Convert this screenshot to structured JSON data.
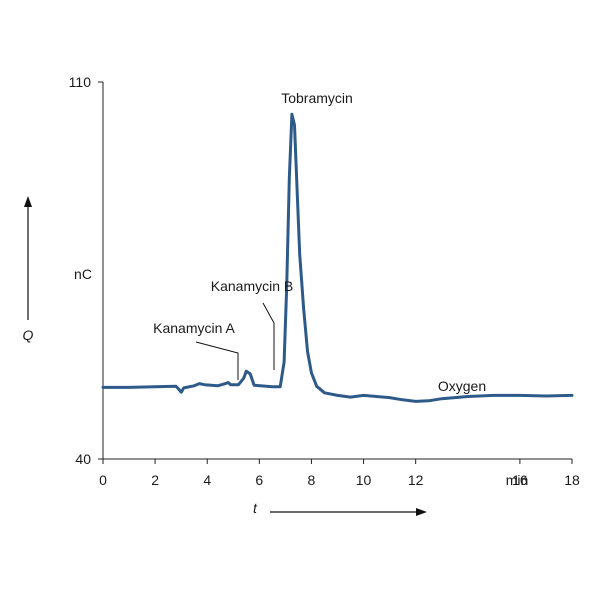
{
  "chart_data": {
    "type": "line",
    "title": "",
    "xlabel": "t",
    "ylabel": "Q",
    "yunit": "nC",
    "xunit": "min",
    "xlim": [
      0,
      18
    ],
    "ylim": [
      40,
      110
    ],
    "x_ticks": [
      {
        "value": 0,
        "label": "0"
      },
      {
        "value": 2,
        "label": "2"
      },
      {
        "value": 4,
        "label": "4"
      },
      {
        "value": 6,
        "label": "6"
      },
      {
        "value": 8,
        "label": "8"
      },
      {
        "value": 10,
        "label": "10"
      },
      {
        "value": 12,
        "label": "12"
      },
      {
        "value": 16,
        "label": "16"
      },
      {
        "value": 18,
        "label": "18"
      }
    ],
    "y_ticks": [
      {
        "value": 40,
        "label": "40"
      },
      {
        "value": 110,
        "label": "110"
      }
    ],
    "grid": false,
    "line_color": "#2e5a8a",
    "series": [
      {
        "values": [
          [
            0.0,
            53.3
          ],
          [
            1.0,
            53.3
          ],
          [
            2.0,
            53.4
          ],
          [
            2.8,
            53.5
          ],
          [
            2.9,
            53.0
          ],
          [
            3.0,
            52.4
          ],
          [
            3.1,
            53.2
          ],
          [
            3.5,
            53.6
          ],
          [
            3.7,
            54.0
          ],
          [
            3.9,
            53.8
          ],
          [
            4.4,
            53.6
          ],
          [
            4.7,
            54.0
          ],
          [
            4.8,
            54.2
          ],
          [
            4.9,
            53.8
          ],
          [
            5.2,
            53.8
          ],
          [
            5.4,
            55.0
          ],
          [
            5.5,
            56.3
          ],
          [
            5.65,
            55.8
          ],
          [
            5.8,
            53.7
          ],
          [
            6.5,
            53.4
          ],
          [
            6.8,
            53.4
          ],
          [
            6.95,
            58.0
          ],
          [
            7.05,
            72.0
          ],
          [
            7.15,
            92.0
          ],
          [
            7.25,
            104.0
          ],
          [
            7.35,
            102.0
          ],
          [
            7.45,
            90.0
          ],
          [
            7.55,
            78.0
          ],
          [
            7.7,
            68.0
          ],
          [
            7.85,
            60.0
          ],
          [
            8.0,
            56.0
          ],
          [
            8.2,
            53.5
          ],
          [
            8.5,
            52.3
          ],
          [
            9.0,
            51.8
          ],
          [
            9.5,
            51.5
          ],
          [
            10.0,
            51.8
          ],
          [
            10.5,
            51.6
          ],
          [
            11.0,
            51.4
          ],
          [
            11.5,
            51.0
          ],
          [
            12.0,
            50.7
          ],
          [
            12.5,
            50.8
          ],
          [
            13.0,
            51.2
          ],
          [
            14.0,
            51.6
          ],
          [
            15.0,
            51.8
          ],
          [
            16.0,
            51.8
          ],
          [
            17.0,
            51.7
          ],
          [
            18.0,
            51.8
          ]
        ]
      }
    ],
    "annotations": [
      {
        "text": "Tobramycin"
      },
      {
        "text": "Kanamycin B"
      },
      {
        "text": "Kanamycin A"
      },
      {
        "text": "Oxygen"
      }
    ]
  }
}
